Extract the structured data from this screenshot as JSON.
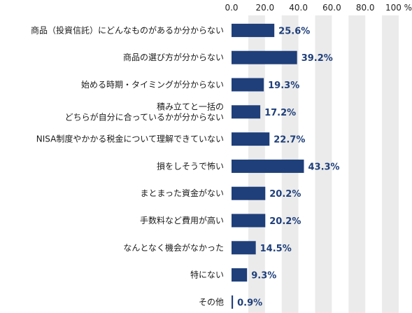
{
  "chart_data": {
    "type": "bar",
    "orientation": "horizontal",
    "categories": [
      [
        "商品（投資信託）にどんなものがあるか分からない"
      ],
      [
        "商品の選び方が分からない"
      ],
      [
        "始める時期・タイミングが分からない"
      ],
      [
        "積み立てと一括の",
        "どちらが自分に合っているかが分からない"
      ],
      [
        "NISA制度やかかる税金について理解できていない"
      ],
      [
        "損をしそうで怖い"
      ],
      [
        "まとまった資金がない"
      ],
      [
        "手数料など費用が高い"
      ],
      [
        "なんとなく機会がなかった"
      ],
      [
        "特にない"
      ],
      [
        "その他"
      ]
    ],
    "values": [
      25.6,
      39.2,
      19.3,
      17.2,
      22.7,
      43.3,
      20.2,
      20.2,
      14.5,
      9.3,
      0.9
    ],
    "value_labels": [
      "25.6%",
      "39.2%",
      "19.3%",
      "17.2%",
      "22.7%",
      "43.3%",
      "20.2%",
      "20.2%",
      "14.5%",
      "9.3%",
      "0.9%"
    ],
    "xlim": [
      0,
      100
    ],
    "x_ticks": [
      "0.0",
      "20.0",
      "40.0",
      "60.0",
      "80.0",
      "100"
    ],
    "x_unit": "%",
    "grid": "alternating vertical bands",
    "colors": {
      "bar": "#1f3f7a",
      "band": "#ebebeb",
      "label": "#1f3f7a"
    }
  }
}
